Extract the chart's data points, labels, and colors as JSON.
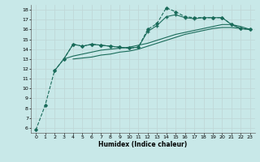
{
  "background_color": "#c8e8e8",
  "grid_color": "#c0d8d8",
  "line_color": "#1a6b5a",
  "xlabel": "Humidex (Indice chaleur)",
  "ylim": [
    5.5,
    18.5
  ],
  "xlim": [
    -0.5,
    23.5
  ],
  "yticks": [
    6,
    7,
    8,
    9,
    10,
    11,
    12,
    13,
    14,
    15,
    16,
    17,
    18
  ],
  "xticks": [
    0,
    1,
    2,
    3,
    4,
    5,
    6,
    7,
    8,
    9,
    10,
    11,
    12,
    13,
    14,
    15,
    16,
    17,
    18,
    19,
    20,
    21,
    22,
    23
  ],
  "line1_x": [
    0,
    1,
    2,
    3,
    4,
    5,
    6,
    7,
    8,
    9,
    10,
    11,
    12,
    13,
    14,
    15,
    16,
    17,
    18,
    19,
    20,
    21,
    22,
    23
  ],
  "line1_y": [
    5.8,
    8.3,
    11.8,
    13.0,
    14.5,
    14.3,
    14.5,
    14.4,
    14.3,
    14.2,
    14.1,
    14.2,
    16.0,
    16.6,
    18.2,
    17.8,
    17.3,
    17.2,
    17.2,
    17.2,
    17.2,
    16.5,
    16.1,
    16.0
  ],
  "line2_x": [
    2,
    3,
    4,
    5,
    6,
    7,
    8,
    9,
    10,
    11,
    12,
    13,
    14,
    15,
    16,
    17,
    18,
    19,
    20,
    21,
    22,
    23
  ],
  "line2_y": [
    11.8,
    13.0,
    14.5,
    14.3,
    14.5,
    14.4,
    14.3,
    14.2,
    14.1,
    14.2,
    15.8,
    16.4,
    17.3,
    17.5,
    17.2,
    17.1,
    17.2,
    17.2,
    17.2,
    16.5,
    16.1,
    16.0
  ],
  "line3_x": [
    3,
    4,
    5,
    6,
    7,
    8,
    9,
    10,
    11,
    12,
    13,
    14,
    15,
    16,
    17,
    18,
    19,
    20,
    21,
    22,
    23
  ],
  "line3_y": [
    13.0,
    13.3,
    13.5,
    13.7,
    13.9,
    14.0,
    14.1,
    14.2,
    14.4,
    14.6,
    14.9,
    15.2,
    15.5,
    15.7,
    15.9,
    16.1,
    16.3,
    16.5,
    16.5,
    16.3,
    16.0
  ],
  "line4_x": [
    4,
    5,
    6,
    7,
    8,
    9,
    10,
    11,
    12,
    13,
    14,
    15,
    16,
    17,
    18,
    19,
    20,
    21,
    22,
    23
  ],
  "line4_y": [
    13.0,
    13.1,
    13.2,
    13.4,
    13.5,
    13.7,
    13.8,
    14.0,
    14.3,
    14.6,
    14.9,
    15.2,
    15.5,
    15.7,
    15.9,
    16.1,
    16.2,
    16.2,
    16.1,
    16.0
  ]
}
